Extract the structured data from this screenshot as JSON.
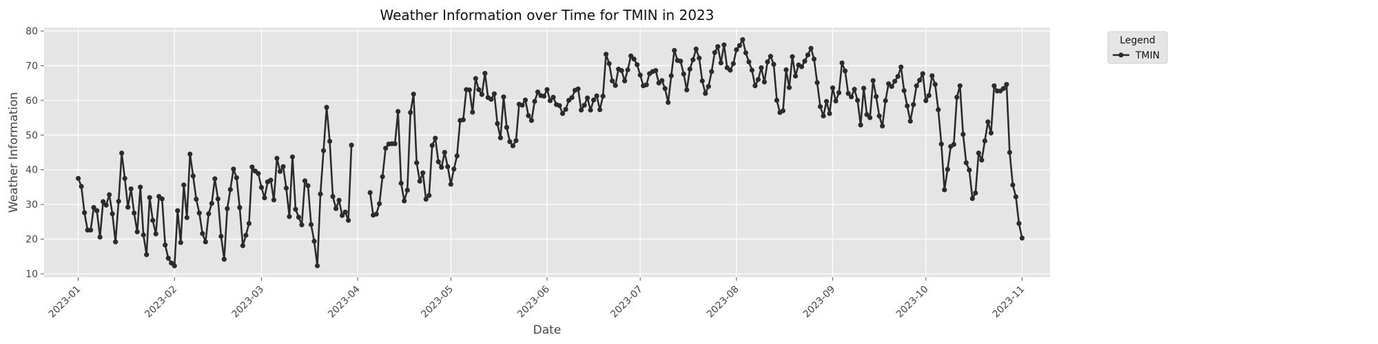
{
  "chart_data": {
    "type": "line",
    "title": "Weather Information over Time for TMIN in 2023",
    "xlabel": "Date",
    "ylabel": "Weather Information",
    "xlim": [
      "2022-12-21",
      "2023-11-10"
    ],
    "ylim": [
      9,
      81
    ],
    "x_ticks": [
      "2023-01",
      "2023-02",
      "2023-03",
      "2023-04",
      "2023-05",
      "2023-06",
      "2023-07",
      "2023-08",
      "2023-09",
      "2023-10",
      "2023-11"
    ],
    "y_ticks": [
      10,
      20,
      30,
      40,
      50,
      60,
      70,
      80
    ],
    "grid": true,
    "legend": {
      "title": "Legend",
      "position": "outside-top-right"
    },
    "colors": {
      "plot_background": "#e5e5e5",
      "line": "#2b2b2b",
      "grid": "#ffffff"
    },
    "series": [
      {
        "name": "TMIN",
        "segments": [
          {
            "start": "2023-01-01",
            "values": [
              37.5,
              35.2,
              27.6,
              22.6,
              22.6,
              29.1,
              28.2,
              20.6,
              30.8,
              29.8,
              32.8,
              27.3,
              19.2,
              30.9,
              44.8,
              37.5,
              29.2,
              34.5,
              27.5,
              22.1,
              35.0,
              21.2,
              15.5,
              32.0,
              25.4,
              21.5,
              32.3,
              31.6,
              18.3,
              14.5,
              13.1,
              12.3,
              28.2,
              19.0,
              35.6,
              26.2,
              44.5,
              38.2,
              31.5,
              27.5,
              21.6,
              19.2,
              27.3,
              30.3,
              37.4,
              31.6,
              20.8,
              14.2,
              28.8,
              34.3,
              40.2,
              37.7,
              29.1,
              18.1,
              21.1,
              24.5,
              40.8,
              39.6,
              38.9,
              34.9,
              31.9,
              36.5,
              37.0,
              31.3,
              43.3,
              39.5,
              40.9,
              34.7,
              26.5,
              43.7,
              28.6,
              26.3,
              24.1,
              36.8,
              35.4,
              24.2,
              19.4,
              12.3,
              33.0,
              45.5,
              58.0,
              48.2,
              32.3,
              28.8,
              31.2,
              26.8,
              27.8,
              25.4,
              47.1
            ]
          },
          {
            "start": "2023-04-05",
            "values": [
              33.4,
              26.9,
              27.2,
              30.2,
              38.0,
              46.2,
              47.4,
              47.5,
              47.5,
              56.8,
              36.1,
              31.0,
              34.1,
              56.5,
              61.8,
              42.0,
              36.7,
              39.1,
              31.5,
              32.6,
              47.0,
              49.1,
              42.3,
              40.7,
              45.0,
              40.9,
              35.8,
              40.2,
              44.0,
              54.2,
              54.4,
              63.1,
              63.0,
              56.6,
              66.3,
              63.1,
              61.7,
              67.8,
              60.8,
              60.3,
              61.9,
              53.3,
              49.2,
              61.0,
              52.2,
              48.1,
              46.9,
              48.4,
              58.9,
              58.6,
              60.1,
              55.6,
              54.2,
              59.7,
              62.4,
              61.4,
              61.2,
              63.1,
              59.9,
              60.9,
              58.8,
              58.5,
              56.2,
              57.4,
              60.0,
              60.8,
              62.9,
              63.3,
              57.2,
              58.6,
              60.7,
              57.2,
              60.1,
              61.3,
              57.3,
              61.2,
              73.3,
              70.6,
              65.6,
              64.3,
              69.0,
              68.6,
              65.6,
              68.8,
              72.8,
              71.9,
              70.3,
              67.3,
              64.2,
              64.5,
              67.7,
              68.3,
              68.6,
              65.0,
              65.7,
              63.4,
              59.4,
              67.1,
              74.4,
              71.5,
              71.3,
              67.6,
              63.0,
              69.0,
              71.7,
              74.8,
              72.2,
              65.6,
              62.0,
              64.0,
              68.3,
              73.8,
              75.5,
              70.8,
              76.0,
              69.4,
              68.7,
              70.6,
              74.6,
              75.8,
              77.5,
              73.7,
              71.1,
              68.7,
              64.2,
              66.0,
              69.4,
              65.3,
              71.1,
              72.7,
              70.4,
              60.0,
              56.5,
              57.0,
              68.8,
              63.7,
              72.6,
              67.0,
              70.2,
              69.7,
              71.3,
              73.1,
              75.0,
              71.9,
              65.1,
              58.2,
              55.5,
              59.7,
              56.2,
              63.6,
              59.8,
              62.2,
              70.8,
              68.5,
              62.0,
              61.0,
              63.2,
              60.0,
              52.9,
              63.5,
              55.9,
              55.0,
              65.7,
              61.1,
              55.5,
              52.6,
              59.9,
              64.8,
              64.0,
              65.5,
              66.9,
              69.6,
              62.8,
              58.4,
              54.0,
              58.8,
              64.2,
              65.8,
              67.7,
              59.9,
              61.4,
              67.1,
              64.6,
              57.3,
              47.4,
              34.2,
              40.1,
              46.7,
              47.3,
              60.9,
              64.2,
              50.2,
              42.0,
              39.9,
              31.7,
              33.3,
              44.8,
              42.8,
              48.3,
              53.8,
              50.6,
              64.2,
              62.7,
              62.7,
              63.4,
              64.6,
              45.0,
              35.6,
              32.2,
              24.5,
              20.3
            ]
          }
        ]
      }
    ]
  }
}
